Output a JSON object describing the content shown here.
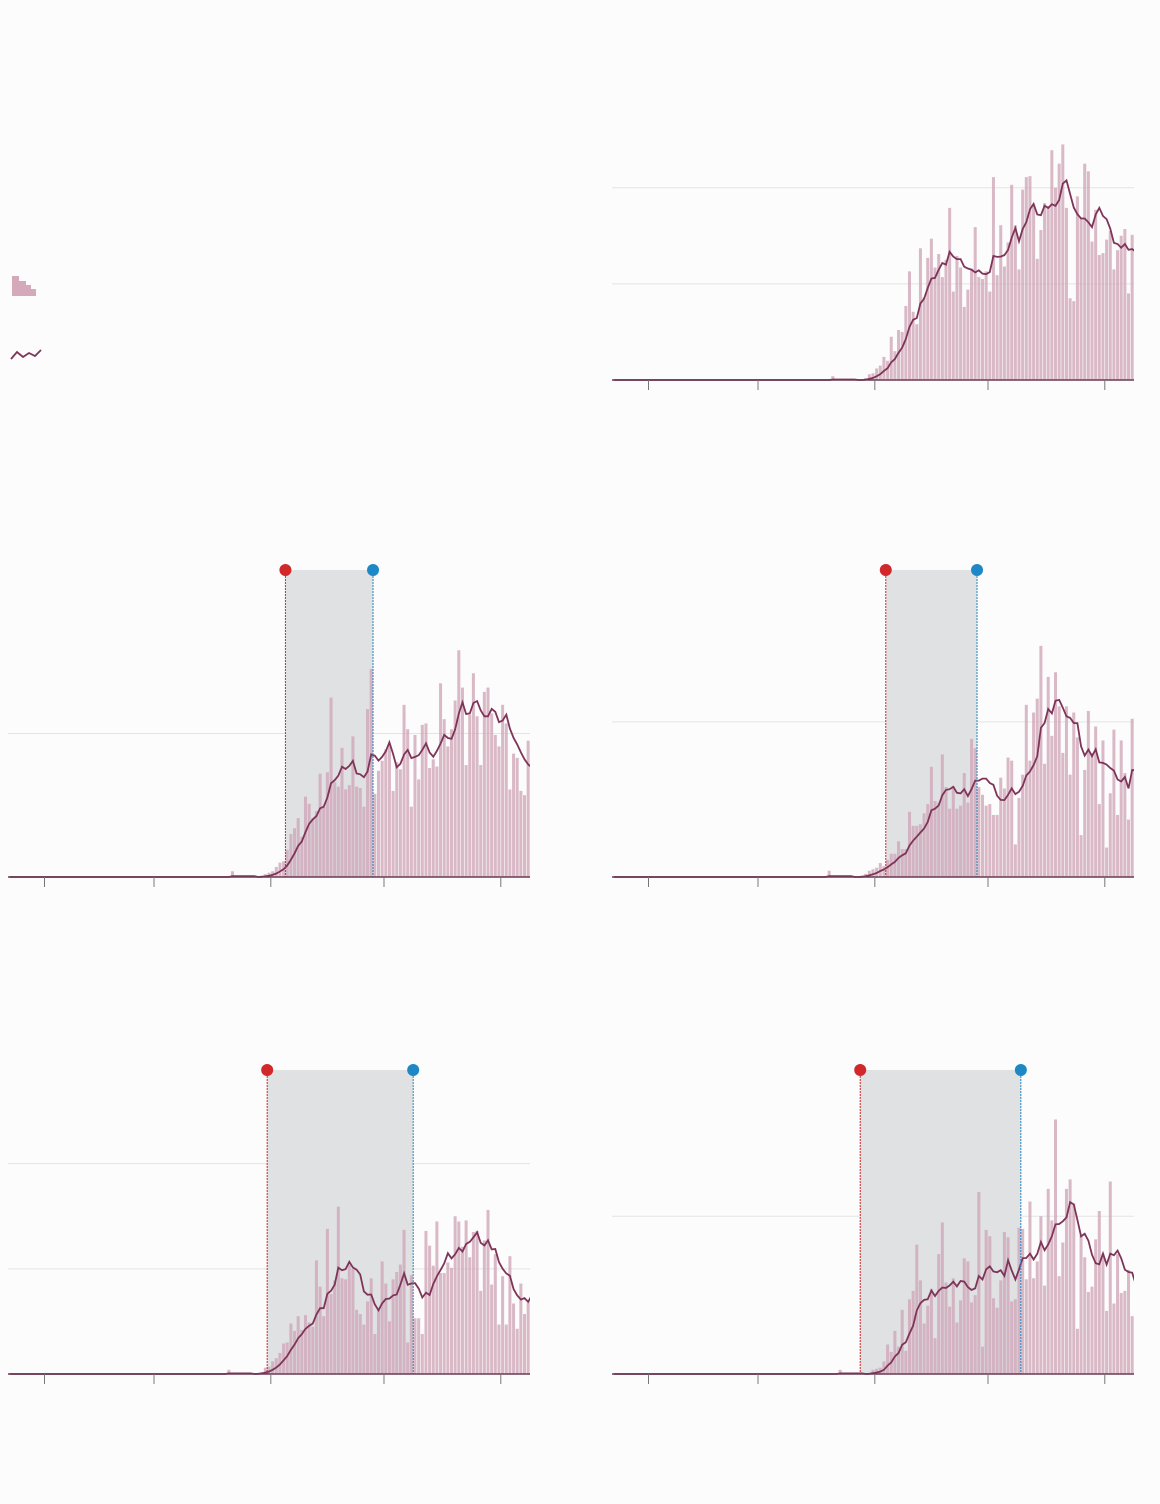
{
  "colors": {
    "bar": "#cfa3b6",
    "bar_strong": "#b27e97",
    "line": "#7e3458",
    "grid": "#e4e4e4",
    "axis": "#6a3a52",
    "tick": "#777777",
    "shade": "#dfe1e3",
    "marker_red": "#d0282b",
    "marker_blue": "#1e88c6",
    "background": "#fcfcfc"
  },
  "legend": {
    "bar_icon": "daily-count-bars-icon",
    "line_icon": "rolling-average-line-icon"
  },
  "chart_data": [
    {
      "id": "panel-top-right",
      "type": "bar",
      "line_type": "rolling-average",
      "ylim": [
        0,
        260
      ],
      "gridlines": [
        100,
        200
      ],
      "x_ticks": [
        10,
        40,
        72,
        103,
        135
      ],
      "xlim": [
        0,
        143
      ],
      "start": 65,
      "end": 143,
      "rise": 38,
      "plateau": 160,
      "noise": 0.35,
      "seed": 11,
      "shaded_range": null
    },
    {
      "id": "panel-middle-left",
      "type": "bar",
      "line_type": "rolling-average",
      "ylim": [
        0,
        200
      ],
      "gridlines": [
        100
      ],
      "x_ticks": [
        10,
        40,
        72,
        103,
        135
      ],
      "xlim": [
        0,
        143
      ],
      "start": 66,
      "end": 143,
      "rise": 36,
      "plateau": 103,
      "noise": 0.35,
      "seed": 23,
      "shaded_range": [
        76,
        100
      ]
    },
    {
      "id": "panel-middle-right",
      "type": "bar",
      "line_type": "rolling-average",
      "ylim": [
        0,
        185
      ],
      "gridlines": [
        100
      ],
      "x_ticks": [
        10,
        40,
        72,
        103,
        135
      ],
      "xlim": [
        0,
        143
      ],
      "start": 64,
      "end": 143,
      "rise": 40,
      "plateau": 80,
      "noise": 0.45,
      "seed": 37,
      "shaded_range": [
        75,
        100
      ]
    },
    {
      "id": "panel-bottom-left",
      "type": "bar",
      "line_type": "rolling-average",
      "ylim": [
        0,
        270
      ],
      "gridlines": [
        100,
        200
      ],
      "x_ticks": [
        10,
        40,
        72,
        103,
        135
      ],
      "xlim": [
        0,
        143
      ],
      "start": 65,
      "end": 143,
      "rise": 30,
      "plateau": 90,
      "noise": 0.45,
      "seed": 51,
      "shaded_range": [
        71,
        111
      ]
    },
    {
      "id": "panel-bottom-right",
      "type": "bar",
      "line_type": "rolling-average",
      "ylim": [
        0,
        270
      ],
      "gridlines": [
        150
      ],
      "x_ticks": [
        10,
        40,
        72,
        103,
        135
      ],
      "xlim": [
        0,
        143
      ],
      "start": 67,
      "end": 143,
      "rise": 30,
      "plateau": 115,
      "noise": 0.45,
      "seed": 67,
      "shaded_range": [
        68,
        112
      ]
    }
  ]
}
